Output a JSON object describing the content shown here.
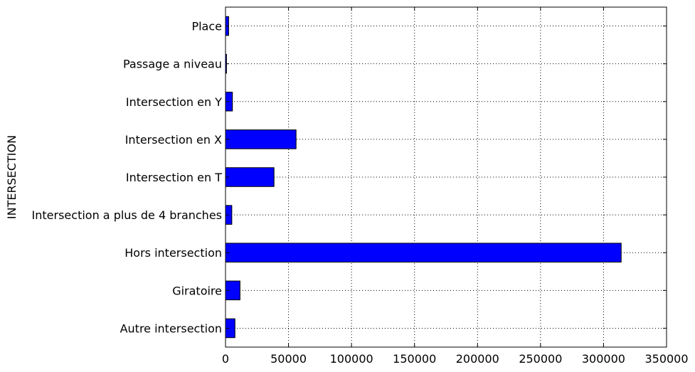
{
  "chart_data": {
    "type": "bar",
    "orientation": "horizontal",
    "ylabel": "INTERSECTION",
    "xlabel": "",
    "categories": [
      "Autre intersection",
      "Giratoire",
      "Hors intersection",
      "Intersection a plus de 4 branches",
      "Intersection en T",
      "Intersection en X",
      "Intersection en Y",
      "Passage a niveau",
      "Place"
    ],
    "values": [
      7500,
      11500,
      314000,
      5000,
      38500,
      56000,
      5500,
      800,
      2500
    ],
    "xlim": [
      0,
      350000
    ],
    "xticks": [
      0,
      50000,
      100000,
      150000,
      200000,
      250000,
      300000,
      350000
    ],
    "xtick_labels": [
      "0",
      "50000",
      "100000",
      "150000",
      "200000",
      "250000",
      "300000",
      "350000"
    ],
    "grid": true,
    "bar_color": "#0000ff"
  }
}
